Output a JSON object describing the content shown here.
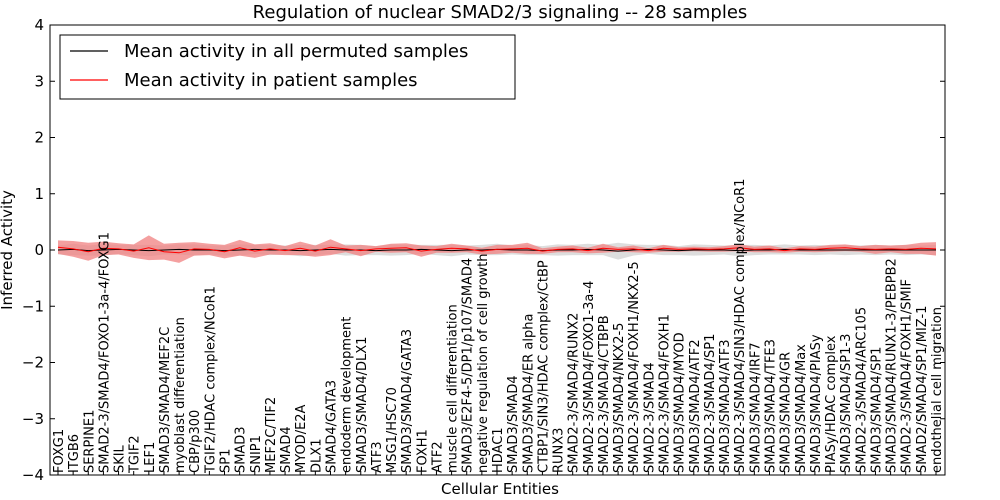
{
  "chart_data": {
    "type": "line",
    "title": "Regulation of nuclear SMAD2/3 signaling -- 28 samples",
    "xlabel": "Cellular Entities",
    "ylabel": "Inferred Activity",
    "ylim": [
      -4,
      4
    ],
    "yticks": [
      4,
      3,
      2,
      1,
      0,
      -1,
      -2,
      -3,
      -4
    ],
    "ytick_labels": [
      "4",
      "3",
      "2",
      "1",
      "0",
      "−1",
      "−2",
      "−3",
      "−4"
    ],
    "legend": {
      "placement": "top-left",
      "entries": [
        {
          "label": "Mean activity in all permuted samples",
          "color": "#000000"
        },
        {
          "label": "Mean activity in patient samples",
          "color": "#ff0000"
        }
      ]
    },
    "colors": {
      "patient_line": "#ff0000",
      "patient_band": "#f08080",
      "permuted_line": "#000000",
      "permuted_band": "#bbbbbb"
    },
    "categories": [
      "FOXG1",
      "ITGB6",
      "SERPINE1",
      "SMAD2-3/SMAD4/FOXO1-3a-4/FOXG1",
      "SKIL",
      "TGIF2",
      "LEF1",
      "SMAD3/SMAD4/MEF2C",
      "myoblast differentiation",
      "CBP/p300",
      "TGIF2/HDAC complex/NCoR1",
      "SP1",
      "SMAD3",
      "SNIP1",
      "MEF2C/TIF2",
      "SMAD4",
      "MYOD/E2A",
      "DLX1",
      "SMAD4/GATA3",
      "endoderm development",
      "SMAD3/SMAD4/DLX1",
      "ATF3",
      "MSG1/HSC70",
      "SMAD3/SMAD4/GATA3",
      "FOXH1",
      "ATF2",
      "muscle cell differentiation",
      "SMAD3/E2F4-5/DP1/p107/SMAD4",
      "negative regulation of cell growth",
      "HDAC1",
      "SMAD3/SMAD4",
      "SMAD3/SMAD4/ER alpha",
      "CTBP1/SIN3/HDAC complex/CtBP",
      "RUNX3",
      "SMAD2-3/SMAD4/RUNX2",
      "SMAD2-3/SMAD4/FOXO1-3a-4",
      "SMAD2-3/SMAD4/CTBPB",
      "SMAD3/SMAD4/NKX2-5",
      "SMAD2-3/SMAD4/FOXH1/NKX2-5",
      "SMAD2-3/SMAD4",
      "SMAD2-3/SMAD4/FOXH1",
      "SMAD3/SMAD4/MYOD",
      "SMAD3/SMAD4/ATF2",
      "SMAD2-3/SMAD4/SP1",
      "SMAD3/SMAD4/ATF3",
      "SMAD2-3/SMAD4/SIN3/HDAC complex/NCoR1",
      "SMAD3/SMAD4/IRF7",
      "SMAD3/SMAD4/TFE3",
      "SMAD3/SMAD4/GR",
      "SMAD3/SMAD4/Max",
      "SMAD3/SMAD4/PIASy",
      "PIASy/HDAC complex",
      "SMAD3/SMAD4/SP1-3",
      "SMAD2-3/SMAD4/ARC105",
      "SMAD3/SMAD4/SP1",
      "SMAD3/SMAD4/RUNX1-3/PEBPB2",
      "SMAD2-3/SMAD4/FOXH1/SMIF",
      "SMAD2/SMAD4/SP1/MIZ-1",
      "endothelial cell migration"
    ],
    "series": [
      {
        "name": "Mean activity in all permuted samples",
        "mean": [
          0,
          0.01,
          -0.01,
          0,
          0.01,
          0,
          -0.01,
          0,
          0.01,
          0,
          0,
          -0.01,
          0,
          0.01,
          0,
          0,
          -0.01,
          0,
          0.01,
          0,
          0,
          -0.01,
          0,
          0,
          0.01,
          0,
          -0.01,
          0,
          0,
          0.01,
          0,
          0,
          -0.01,
          0,
          0,
          0.01,
          0,
          -0.02,
          0,
          0.01,
          0,
          -0.01,
          0,
          0,
          0,
          -0.01,
          0,
          0,
          0.01,
          0,
          0,
          0,
          0,
          0,
          0,
          0,
          0,
          0,
          0
        ],
        "spread": [
          0.08,
          0.1,
          0.09,
          0.1,
          0.08,
          0.09,
          0.1,
          0.08,
          0.09,
          0.1,
          0.08,
          0.09,
          0.1,
          0.08,
          0.09,
          0.08,
          0.1,
          0.09,
          0.08,
          0.1,
          0.09,
          0.08,
          0.1,
          0.09,
          0.08,
          0.09,
          0.1,
          0.08,
          0.09,
          0.1,
          0.08,
          0.09,
          0.08,
          0.1,
          0.09,
          0.1,
          0.09,
          0.15,
          0.1,
          0.08,
          0.09,
          0.08,
          0.1,
          0.09,
          0.08,
          0.1,
          0.09,
          0.08,
          0.09,
          0.08,
          0.09,
          0.08,
          0.09,
          0.08,
          0.09,
          0.08,
          0.09,
          0.08,
          0.09
        ]
      },
      {
        "name": "Mean activity in patient samples",
        "mean": [
          0.05,
          0.02,
          -0.03,
          0.03,
          0.02,
          -0.02,
          0.04,
          -0.03,
          -0.05,
          0.02,
          0.01,
          -0.03,
          0.04,
          -0.02,
          0.02,
          -0.01,
          0.03,
          -0.02,
          0.05,
          0.02,
          -0.01,
          0.02,
          0.03,
          0.04,
          -0.02,
          0.01,
          0.03,
          0.02,
          -0.02,
          0.01,
          0.02,
          0.03,
          -0.02,
          0.01,
          0.02,
          -0.01,
          0.03,
          0.01,
          0.02,
          -0.01,
          0.03,
          0.01,
          0.02,
          0.01,
          0.02,
          0.04,
          0.01,
          0.02,
          -0.01,
          0.02,
          0.01,
          0.03,
          0.04,
          0.02,
          0.01,
          0.02,
          0.01,
          0.03,
          0.02
        ],
        "spread": [
          0.12,
          0.14,
          0.16,
          0.12,
          0.1,
          0.12,
          0.22,
          0.14,
          0.18,
          0.12,
          0.1,
          0.12,
          0.14,
          0.12,
          0.1,
          0.08,
          0.12,
          0.1,
          0.14,
          0.06,
          0.1,
          0.05,
          0.08,
          0.08,
          0.1,
          0.06,
          0.08,
          0.06,
          0.06,
          0.08,
          0.07,
          0.1,
          0.05,
          0.05,
          0.06,
          0.05,
          0.08,
          0.04,
          0.06,
          0.04,
          0.06,
          0.04,
          0.04,
          0.04,
          0.05,
          0.06,
          0.05,
          0.06,
          0.04,
          0.05,
          0.05,
          0.06,
          0.06,
          0.05,
          0.08,
          0.06,
          0.08,
          0.1,
          0.12
        ]
      }
    ]
  }
}
